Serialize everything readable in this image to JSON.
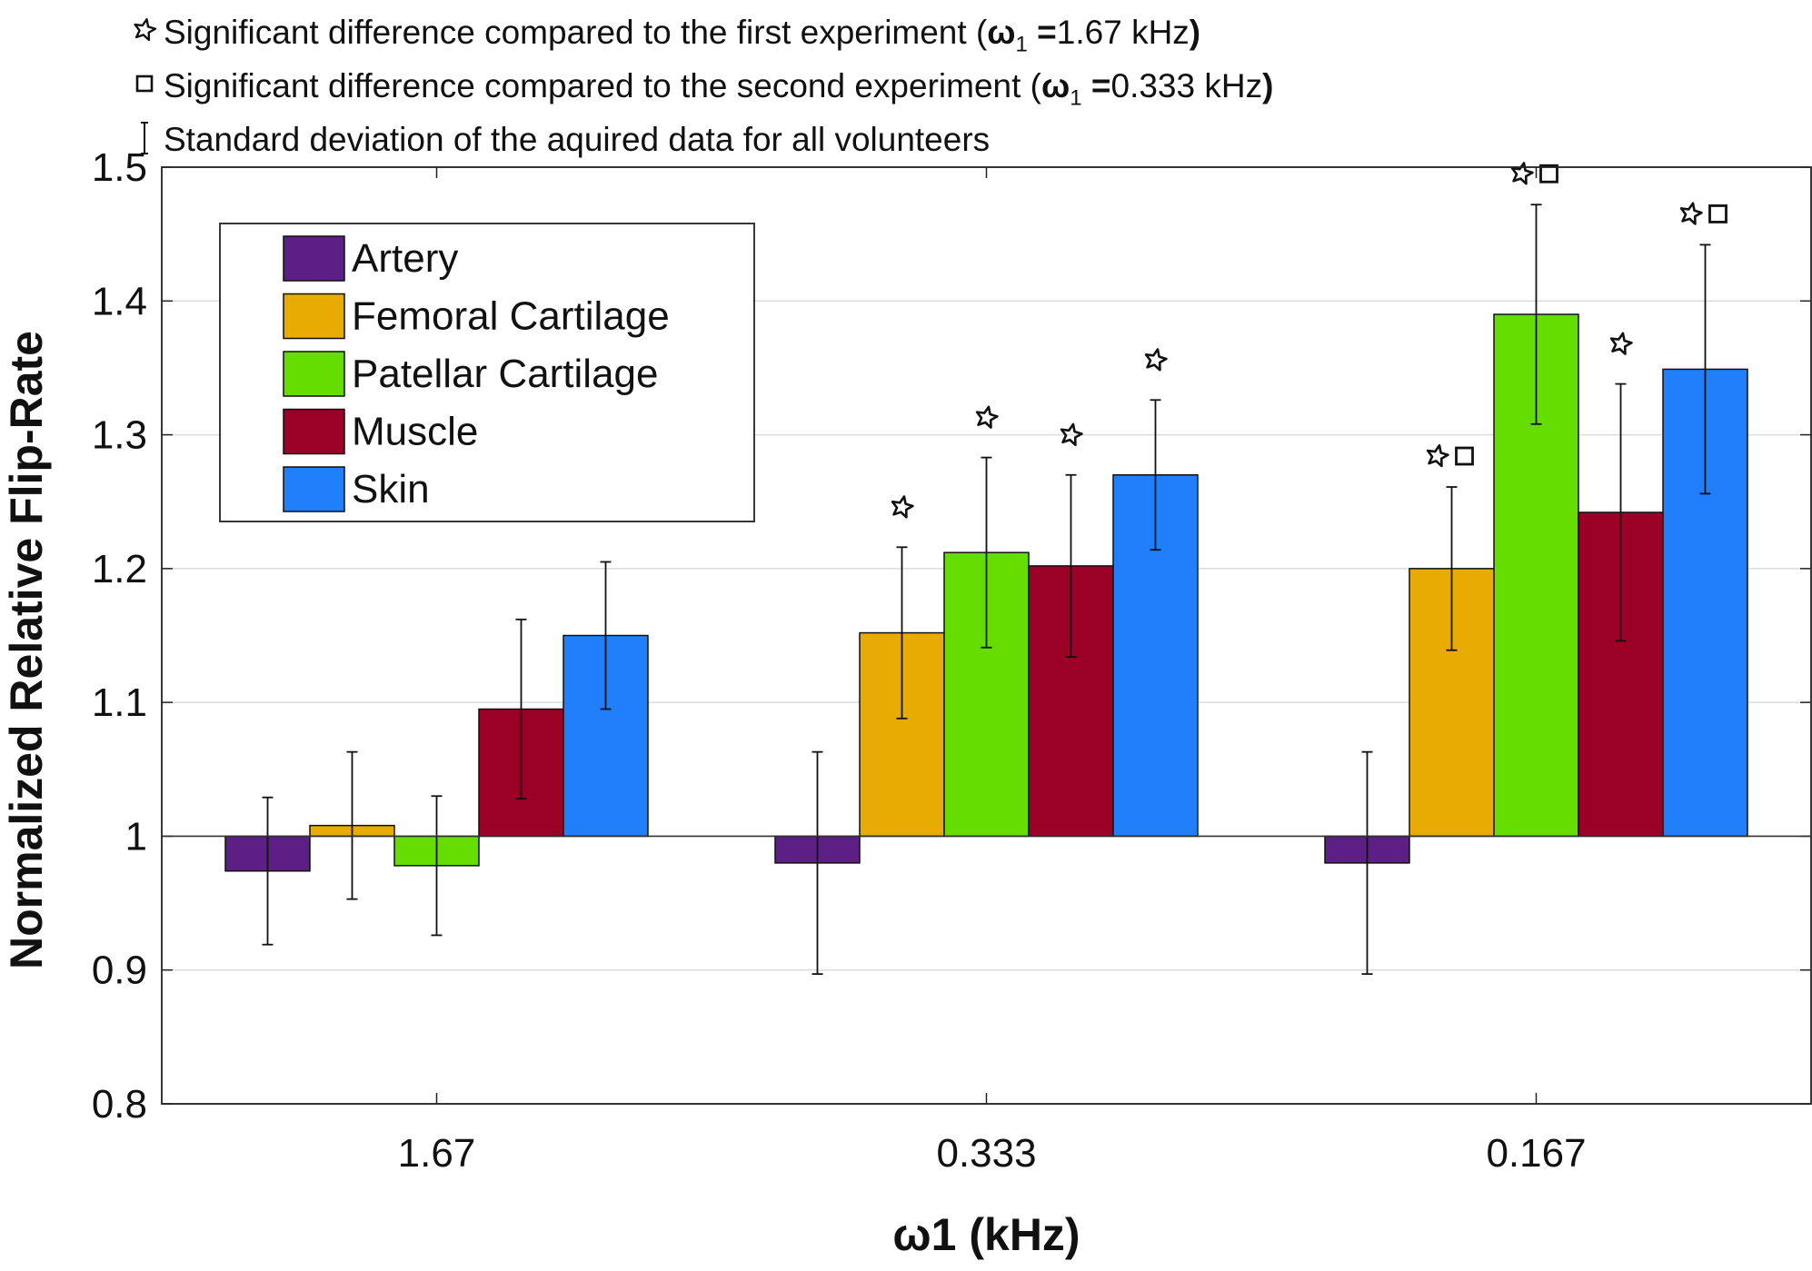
{
  "chart_data": {
    "type": "bar",
    "title": "",
    "xlabel": "ω1 (kHz)",
    "ylabel": "Normalized Relative Flip-Rate",
    "categories": [
      "1.67",
      "0.333",
      "0.167"
    ],
    "ylim": [
      0.8,
      1.5
    ],
    "yticks": [
      "0.8",
      "0.9",
      "1",
      "1.1",
      "1.2",
      "1.3",
      "1.4",
      "1.5"
    ],
    "baseline": 1.0,
    "grid": true,
    "legend_position": "top-left",
    "series": [
      {
        "name": "Artery",
        "color": "#5b1f86",
        "values": [
          0.974,
          0.98,
          0.98
        ],
        "errors": [
          0.055,
          0.083,
          0.083
        ],
        "markers": [
          "",
          "",
          ""
        ]
      },
      {
        "name": "Femoral Cartilage",
        "color": "#e8ab04",
        "values": [
          1.008,
          1.152,
          1.2
        ],
        "errors": [
          0.055,
          0.064,
          0.061
        ],
        "markers": [
          "",
          "star",
          "star-square"
        ]
      },
      {
        "name": "Patellar Cartilage",
        "color": "#66dd00",
        "values": [
          0.978,
          1.212,
          1.39
        ],
        "errors": [
          0.052,
          0.071,
          0.082
        ],
        "markers": [
          "",
          "star",
          "star-square"
        ]
      },
      {
        "name": "Muscle",
        "color": "#9b0026",
        "values": [
          1.095,
          1.202,
          1.242
        ],
        "errors": [
          0.067,
          0.068,
          0.096
        ],
        "markers": [
          "",
          "star",
          "star"
        ]
      },
      {
        "name": "Skin",
        "color": "#217ffc",
        "values": [
          1.15,
          1.27,
          1.349
        ],
        "errors": [
          0.055,
          0.056,
          0.093
        ],
        "markers": [
          "",
          "star",
          "star-square"
        ]
      }
    ]
  },
  "notes": {
    "star_prefix": "Significant difference compared to the first experiment (",
    "star_bold_omega": "ω",
    "star_sub": "1",
    "star_bold_eq": " =",
    "star_value": "1.67 kHz",
    "star_close": ")",
    "square_prefix": "Significant difference compared to the second experiment (",
    "square_bold_omega": "ω",
    "square_sub": "1",
    "square_bold_eq": " =",
    "square_value": "0.333 kHz",
    "square_close": ")",
    "errorbar_text": "Standard deviation of the aquired data for all volunteers"
  }
}
